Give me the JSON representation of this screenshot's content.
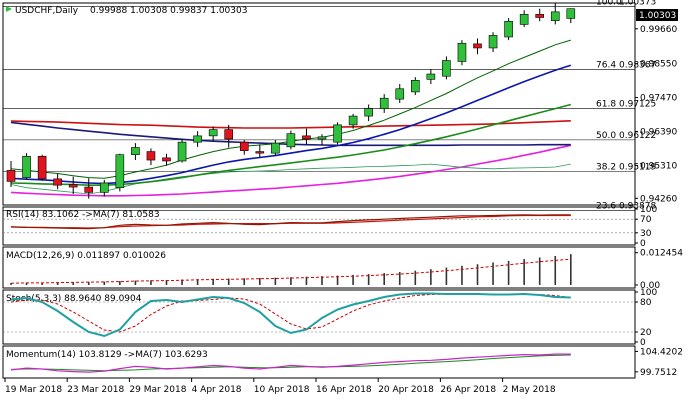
{
  "header": {
    "symbol_label": "USDCHF,Daily",
    "ohlc_label": "0.99988 1.00308 0.99837 1.00303"
  },
  "price_badge": "1.00303",
  "colors": {
    "bull": "#2fbf3a",
    "bear": "#e0141e",
    "ma_fast": "#006400",
    "ma_mid": "#0b16b0",
    "ma_slow": "#1a8c1a",
    "ma_red": "#cc1111",
    "ma_navy": "#1a1a7a",
    "ma_magenta": "#e81ee0",
    "ma_thin": "#2e9a5a",
    "rsi_line": "#8b1a00",
    "macd_bar": "#333333",
    "macd_signal": "#d60000",
    "stoch_main": "#20a0a0",
    "stoch_signal": "#cc0000",
    "momentum_main": "#cc22cc",
    "momentum_signal": "#1a8c1a"
  },
  "chart_data": [
    {
      "type": "candlestick",
      "title": "USDCHF,Daily",
      "subtitle": "0.99988 1.00308 0.99837 1.00303",
      "x_tick_labels": [
        "19 Mar 2018",
        "23 Mar 2018",
        "29 Mar 2018",
        "4 Apr 2018",
        "10 Apr 2018",
        "16 Apr 2018",
        "20 Apr 2018",
        "26 Apr 2018",
        "2 May 2018"
      ],
      "y_tick_labels": [
        "0.99660",
        "0.98550",
        "0.97470",
        "0.96390",
        "0.95310",
        "0.94260"
      ],
      "ylim": [
        0.9408,
        1.0045
      ],
      "fib_levels": [
        {
          "label": "100.0",
          "value_label": "1.00373",
          "value": 1.00373
        },
        {
          "label": "76.4",
          "value_label": "0.98367",
          "value": 0.98367
        },
        {
          "label": "61.8",
          "value_label": "0.97125",
          "value": 0.97125
        },
        {
          "label": "50.0",
          "value_label": "0.96122",
          "value": 0.96122
        },
        {
          "label": "38.2",
          "value_label": "0.95119",
          "value": 0.95119
        },
        {
          "label": "23.6",
          "value_label": "0.93878",
          "value": 0.93878
        }
      ],
      "candles": [
        {
          "o": 0.9515,
          "h": 0.9545,
          "l": 0.9462,
          "c": 0.948
        },
        {
          "o": 0.9492,
          "h": 0.957,
          "l": 0.9485,
          "c": 0.956
        },
        {
          "o": 0.956,
          "h": 0.9565,
          "l": 0.9482,
          "c": 0.9488
        },
        {
          "o": 0.9488,
          "h": 0.9505,
          "l": 0.9455,
          "c": 0.9468
        },
        {
          "o": 0.947,
          "h": 0.9495,
          "l": 0.944,
          "c": 0.9462
        },
        {
          "o": 0.9462,
          "h": 0.949,
          "l": 0.9425,
          "c": 0.9445
        },
        {
          "o": 0.9445,
          "h": 0.9485,
          "l": 0.9432,
          "c": 0.9475
        },
        {
          "o": 0.946,
          "h": 0.9568,
          "l": 0.9448,
          "c": 0.9565
        },
        {
          "o": 0.9565,
          "h": 0.9602,
          "l": 0.9548,
          "c": 0.9588
        },
        {
          "o": 0.9575,
          "h": 0.9585,
          "l": 0.9532,
          "c": 0.9548
        },
        {
          "o": 0.9555,
          "h": 0.9568,
          "l": 0.953,
          "c": 0.9545
        },
        {
          "o": 0.9545,
          "h": 0.9615,
          "l": 0.954,
          "c": 0.9605
        },
        {
          "o": 0.9605,
          "h": 0.964,
          "l": 0.959,
          "c": 0.9625
        },
        {
          "o": 0.9625,
          "h": 0.9655,
          "l": 0.9608,
          "c": 0.9645
        },
        {
          "o": 0.9645,
          "h": 0.966,
          "l": 0.9588,
          "c": 0.9615
        },
        {
          "o": 0.9605,
          "h": 0.9612,
          "l": 0.9565,
          "c": 0.9578
        },
        {
          "o": 0.9575,
          "h": 0.9598,
          "l": 0.9555,
          "c": 0.957
        },
        {
          "o": 0.957,
          "h": 0.9612,
          "l": 0.9562,
          "c": 0.9602
        },
        {
          "o": 0.959,
          "h": 0.9642,
          "l": 0.9582,
          "c": 0.9632
        },
        {
          "o": 0.9625,
          "h": 0.9648,
          "l": 0.9598,
          "c": 0.9615
        },
        {
          "o": 0.9615,
          "h": 0.963,
          "l": 0.9595,
          "c": 0.9622
        },
        {
          "o": 0.9605,
          "h": 0.9668,
          "l": 0.9598,
          "c": 0.966
        },
        {
          "o": 0.966,
          "h": 0.9695,
          "l": 0.9648,
          "c": 0.9688
        },
        {
          "o": 0.9688,
          "h": 0.9725,
          "l": 0.9672,
          "c": 0.9712
        },
        {
          "o": 0.9712,
          "h": 0.9758,
          "l": 0.9698,
          "c": 0.9745
        },
        {
          "o": 0.9742,
          "h": 0.979,
          "l": 0.973,
          "c": 0.9775
        },
        {
          "o": 0.9765,
          "h": 0.9812,
          "l": 0.9755,
          "c": 0.9802
        },
        {
          "o": 0.9805,
          "h": 0.9838,
          "l": 0.979,
          "c": 0.9822
        },
        {
          "o": 0.9815,
          "h": 0.9878,
          "l": 0.9805,
          "c": 0.9865
        },
        {
          "o": 0.9862,
          "h": 0.993,
          "l": 0.985,
          "c": 0.992
        },
        {
          "o": 0.9918,
          "h": 0.9935,
          "l": 0.9885,
          "c": 0.9905
        },
        {
          "o": 0.9905,
          "h": 0.9955,
          "l": 0.9892,
          "c": 0.9945
        },
        {
          "o": 0.994,
          "h": 1.0,
          "l": 0.993,
          "c": 0.999
        },
        {
          "o": 0.998,
          "h": 1.0025,
          "l": 0.9972,
          "c": 1.0012
        },
        {
          "o": 1.0012,
          "h": 1.003,
          "l": 0.999,
          "c": 1.0002
        },
        {
          "o": 0.9992,
          "h": 1.0048,
          "l": 0.998,
          "c": 1.002
        },
        {
          "o": 0.9999,
          "h": 1.0031,
          "l": 0.9984,
          "c": 1.003
        }
      ],
      "ma_fast": [
        0.952,
        0.9515,
        0.951,
        0.9505,
        0.9498,
        0.9492,
        0.949,
        0.9498,
        0.951,
        0.952,
        0.9532,
        0.9548,
        0.9562,
        0.9575,
        0.9585,
        0.9592,
        0.9596,
        0.96,
        0.9608,
        0.9615,
        0.962,
        0.963,
        0.9642,
        0.9658,
        0.9675,
        0.9695,
        0.9715,
        0.9738,
        0.976,
        0.9785,
        0.981,
        0.9832,
        0.9855,
        0.9875,
        0.9895,
        0.9915,
        0.993
      ],
      "ma_mid": [
        0.949,
        0.9487,
        0.9485,
        0.9482,
        0.9478,
        0.9475,
        0.9473,
        0.9476,
        0.9482,
        0.949,
        0.9498,
        0.9508,
        0.952,
        0.9532,
        0.9542,
        0.955,
        0.9556,
        0.9562,
        0.957,
        0.9578,
        0.9585,
        0.9594,
        0.9604,
        0.9616,
        0.963,
        0.9645,
        0.9662,
        0.968,
        0.9698,
        0.9718,
        0.9738,
        0.9758,
        0.9778,
        0.9798,
        0.9816,
        0.9834,
        0.985
      ],
      "ma_slow": [
        0.9475,
        0.9474,
        0.9472,
        0.9471,
        0.947,
        0.9468,
        0.9468,
        0.947,
        0.9474,
        0.9479,
        0.9485,
        0.9492,
        0.95,
        0.9508,
        0.9515,
        0.9521,
        0.9527,
        0.9533,
        0.9539,
        0.9545,
        0.9551,
        0.9557,
        0.9564,
        0.9572,
        0.958,
        0.959,
        0.96,
        0.9611,
        0.9622,
        0.9634,
        0.9647,
        0.966,
        0.9673,
        0.9686,
        0.9699,
        0.9712,
        0.9725
      ],
      "ma_red": [
        0.9672,
        0.9671,
        0.967,
        0.9669,
        0.9667,
        0.9665,
        0.9663,
        0.9661,
        0.966,
        0.9659,
        0.9657,
        0.9655,
        0.9653,
        0.9652,
        0.9651,
        0.965,
        0.965,
        0.965,
        0.965,
        0.9651,
        0.9652,
        0.9653,
        0.9654,
        0.9655,
        0.9656,
        0.9657,
        0.9658,
        0.9659,
        0.966,
        0.9661,
        0.9662,
        0.9663,
        0.9665,
        0.9667,
        0.9669,
        0.9671,
        0.9673
      ],
      "ma_navy": [
        0.9668,
        0.9662,
        0.9656,
        0.965,
        0.9645,
        0.964,
        0.9635,
        0.963,
        0.9626,
        0.9622,
        0.9618,
        0.9614,
        0.9611,
        0.9608,
        0.9606,
        0.9604,
        0.9602,
        0.96,
        0.9598,
        0.9597,
        0.9596,
        0.9595,
        0.9595,
        0.9595,
        0.9595,
        0.9595,
        0.9595,
        0.9595,
        0.9595,
        0.9596,
        0.9596,
        0.9596,
        0.9596,
        0.9596,
        0.9597,
        0.9597,
        0.9597
      ],
      "ma_magenta": [
        0.9445,
        0.9442,
        0.944,
        0.9438,
        0.9436,
        0.9435,
        0.9434,
        0.9434,
        0.9435,
        0.9436,
        0.9438,
        0.944,
        0.9443,
        0.9446,
        0.9449,
        0.9452,
        0.9455,
        0.9458,
        0.9462,
        0.9466,
        0.947,
        0.9474,
        0.9479,
        0.9484,
        0.949,
        0.9496,
        0.9503,
        0.951,
        0.9518,
        0.9526,
        0.9535,
        0.9544,
        0.9553,
        0.9563,
        0.9573,
        0.9584,
        0.9595
      ],
      "ma_thin": [
        0.947,
        0.946,
        0.9455,
        0.945,
        0.9445,
        0.944,
        0.9448,
        0.946,
        0.9472,
        0.948,
        0.9488,
        0.9495,
        0.95,
        0.9505,
        0.951,
        0.9512,
        0.9513,
        0.9515,
        0.9518,
        0.952,
        0.9522,
        0.9523,
        0.9525,
        0.9527,
        0.9528,
        0.953,
        0.9532,
        0.9535,
        0.953,
        0.9525,
        0.9522,
        0.952,
        0.9522,
        0.9523,
        0.9524,
        0.9526,
        0.9535
      ]
    },
    {
      "type": "line",
      "title": "RSI(14) 83.1062 ->MA(7) 81.0583",
      "y_tick_labels": [
        "100",
        "70",
        "30",
        "0"
      ],
      "ylim": [
        0,
        100
      ],
      "levels": [
        70,
        30
      ],
      "series": [
        {
          "name": "RSI(14)",
          "values": [
            48,
            46,
            45,
            44,
            43,
            42,
            45,
            52,
            55,
            53,
            52,
            56,
            58,
            60,
            58,
            55,
            54,
            57,
            60,
            59,
            59,
            63,
            66,
            68,
            70,
            72,
            74,
            76,
            78,
            80,
            80,
            81,
            82,
            83,
            82,
            83,
            83
          ]
        },
        {
          "name": "MA(7)",
          "values": [
            47,
            46,
            46,
            45,
            45,
            44,
            45,
            48,
            50,
            51,
            52,
            53,
            55,
            56,
            57,
            57,
            57,
            57,
            58,
            58,
            58,
            59,
            61,
            63,
            65,
            67,
            69,
            71,
            73,
            75,
            77,
            78,
            80,
            81,
            81,
            81,
            81
          ]
        }
      ]
    },
    {
      "type": "bar",
      "title": "MACD(12,26,9) 0.011897 0.010026",
      "y_tick_labels": [
        "0.012454",
        "0.00"
      ],
      "ylim": [
        -0.0004,
        0.0135
      ],
      "series": [
        {
          "name": "MACD",
          "values": [
            0.0008,
            0.0009,
            0.0009,
            0.001,
            0.0011,
            0.0012,
            0.0013,
            0.0015,
            0.0017,
            0.0018,
            0.0019,
            0.0021,
            0.0022,
            0.0024,
            0.0025,
            0.0026,
            0.0027,
            0.0028,
            0.003,
            0.0032,
            0.0034,
            0.0036,
            0.0039,
            0.0042,
            0.0046,
            0.005,
            0.0055,
            0.0061,
            0.0067,
            0.0074,
            0.008,
            0.0087,
            0.0093,
            0.01,
            0.0106,
            0.0112,
            0.0119
          ]
        },
        {
          "name": "Signal",
          "values": [
            0.0007,
            0.0008,
            0.0008,
            0.0009,
            0.001,
            0.0011,
            0.0012,
            0.0013,
            0.0015,
            0.0016,
            0.0017,
            0.0018,
            0.002,
            0.0021,
            0.0022,
            0.0023,
            0.0024,
            0.0025,
            0.0027,
            0.0028,
            0.003,
            0.0032,
            0.0034,
            0.0036,
            0.0039,
            0.0042,
            0.0046,
            0.005,
            0.0055,
            0.006,
            0.0066,
            0.0072,
            0.0078,
            0.0084,
            0.009,
            0.0095,
            0.01
          ]
        }
      ]
    },
    {
      "type": "line",
      "title": "Stoch(5,3,3) 88.9640 89.0904",
      "y_tick_labels": [
        "100",
        "80",
        "20",
        "0"
      ],
      "ylim": [
        0,
        100
      ],
      "levels": [
        80,
        20
      ],
      "series": [
        {
          "name": "Main",
          "values": [
            85,
            88,
            80,
            62,
            40,
            20,
            12,
            25,
            60,
            82,
            84,
            80,
            85,
            90,
            88,
            78,
            60,
            32,
            18,
            25,
            48,
            65,
            75,
            82,
            90,
            95,
            97,
            97,
            96,
            96,
            96,
            95,
            95,
            96,
            94,
            90,
            89
          ]
        },
        {
          "name": "Signal",
          "values": [
            80,
            84,
            84,
            76,
            60,
            42,
            24,
            20,
            32,
            55,
            72,
            82,
            83,
            85,
            88,
            86,
            76,
            56,
            36,
            26,
            30,
            46,
            62,
            74,
            82,
            88,
            93,
            95,
            96,
            96,
            96,
            96,
            95,
            95,
            95,
            93,
            89
          ]
        }
      ]
    },
    {
      "type": "line",
      "title": "Momentum(14) 103.8129 ->MA(7) 103.6293",
      "y_tick_labels": [
        "104.4202",
        "99.7512"
      ],
      "ylim": [
        98.8,
        105.2
      ],
      "series": [
        {
          "name": "Momentum(14)",
          "values": [
            100.2,
            100.6,
            100.4,
            100.0,
            99.8,
            99.7,
            99.9,
            100.5,
            101.0,
            100.8,
            100.4,
            100.6,
            100.9,
            101.2,
            101.0,
            100.6,
            100.4,
            100.8,
            101.2,
            101.0,
            100.8,
            101.0,
            101.3,
            101.6,
            101.9,
            102.1,
            102.3,
            102.4,
            102.6,
            102.9,
            103.1,
            103.3,
            103.5,
            103.7,
            103.6,
            103.8,
            103.8
          ]
        },
        {
          "name": "MA(7)",
          "values": [
            100.3,
            100.4,
            100.4,
            100.3,
            100.2,
            100.1,
            100.0,
            100.1,
            100.2,
            100.4,
            100.5,
            100.6,
            100.7,
            100.8,
            100.9,
            100.8,
            100.7,
            100.7,
            100.8,
            100.9,
            100.9,
            100.9,
            101.0,
            101.1,
            101.3,
            101.5,
            101.7,
            101.9,
            102.1,
            102.3,
            102.5,
            102.8,
            103.0,
            103.2,
            103.4,
            103.5,
            103.6
          ]
        }
      ]
    }
  ]
}
